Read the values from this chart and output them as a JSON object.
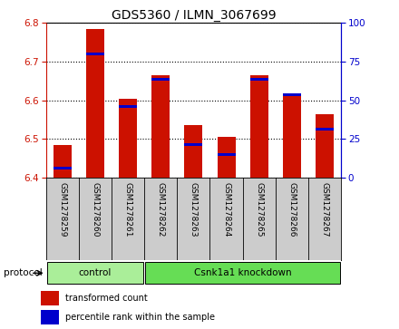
{
  "title": "GDS5360 / ILMN_3067699",
  "samples": [
    "GSM1278259",
    "GSM1278260",
    "GSM1278261",
    "GSM1278262",
    "GSM1278263",
    "GSM1278264",
    "GSM1278265",
    "GSM1278266",
    "GSM1278267"
  ],
  "red_values": [
    6.485,
    6.785,
    6.605,
    6.665,
    6.535,
    6.505,
    6.665,
    6.615,
    6.565
  ],
  "blue_values": [
    6.425,
    6.72,
    6.585,
    6.655,
    6.485,
    6.46,
    6.655,
    6.615,
    6.525
  ],
  "ylim": [
    6.4,
    6.8
  ],
  "yticks_left": [
    6.4,
    6.5,
    6.6,
    6.7,
    6.8
  ],
  "yticks_right": [
    0,
    25,
    50,
    75,
    100
  ],
  "bar_bottom": 6.4,
  "bar_color": "#cc1100",
  "blue_color": "#0000cc",
  "protocol_groups": [
    {
      "label": "control",
      "start": 0,
      "end": 3,
      "color": "#aaee99"
    },
    {
      "label": "Csnk1a1 knockdown",
      "start": 3,
      "end": 9,
      "color": "#66dd55"
    }
  ],
  "protocol_label": "protocol",
  "legend_items": [
    {
      "label": "transformed count",
      "color": "#cc1100"
    },
    {
      "label": "percentile rank within the sample",
      "color": "#0000cc"
    }
  ],
  "bar_width": 0.55,
  "tick_label_area_color": "#cccccc",
  "title_fontsize": 10,
  "tick_fontsize": 7.5,
  "sample_fontsize": 6.5
}
